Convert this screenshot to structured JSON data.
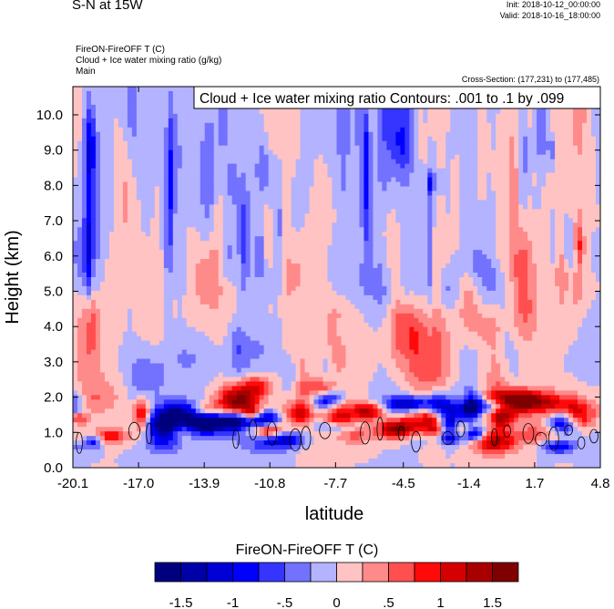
{
  "header": {
    "title": "S-N at 15W",
    "init": "Init: 2018-10-12_00:00:00",
    "valid": "Valid: 2018-10-16_18:00:00",
    "field_desc": "FireON-FireOFF T   (C)",
    "contour_desc": "Cloud + Ice water mixing ratio   (g/kg)",
    "domain": "Main",
    "cross_section": "Cross-Section: (177,231) to (177,485)",
    "contour_info": "Cloud + Ice water mixing ratio Contours: .001 to .1 by .099"
  },
  "chart_data": {
    "type": "heatmap",
    "xlabel": "latitude",
    "ylabel": "Height (km)",
    "xlim": [
      -20.1,
      4.8
    ],
    "ylim": [
      0.0,
      10.8
    ],
    "x_ticks": [
      "-20.1",
      "-17.0",
      "-13.9",
      "-10.8",
      "-7.7",
      "-4.5",
      "-1.4",
      "1.7",
      "4.8"
    ],
    "y_ticks": [
      "0.0",
      "1.0",
      "2.0",
      "3.0",
      "4.0",
      "5.0",
      "6.0",
      "7.0",
      "8.0",
      "9.0",
      "10.0"
    ],
    "colorbar": {
      "title": "FireON-FireOFF T  (C)",
      "tick_labels": [
        "-1.5",
        "-1",
        "-.5",
        "0",
        ".5",
        "1",
        "1.5"
      ],
      "colors": [
        "#00007f",
        "#0000a8",
        "#0000d4",
        "#0000ff",
        "#3535ff",
        "#7272ff",
        "#b3b3ff",
        "#ffc3c3",
        "#ff8a8a",
        "#ff4f4f",
        "#ff0a0a",
        "#d40000",
        "#a80000",
        "#7f0000"
      ]
    },
    "features": [
      {
        "band": "near-surface (0.5–2.0 km)",
        "pattern": "alternating strong warm and cool anomalies up to about ±1.5 C"
      },
      {
        "band": "mid-troposphere (2–6 km)",
        "pattern": "weak mixed anomalies, mostly pale red/blue"
      },
      {
        "band": "upper levels (6–10.8 km)",
        "pattern": "predominantly weak cool anomalies with vertical streaks"
      },
      {
        "band": "0.3–2 km",
        "pattern": "cloud + ice water contour loops (black outlines)"
      }
    ]
  }
}
